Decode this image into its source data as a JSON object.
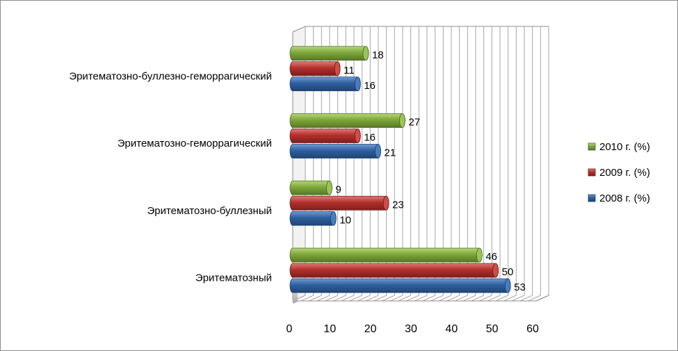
{
  "chart_data": {
    "type": "bar",
    "orientation": "horizontal",
    "style": "3d-cylinder",
    "categories": [
      "Эритематозный",
      "Эритематозно-буллезный",
      "Эритематозно-геморрагический",
      "Эритематозно-буллезно-геморрагический"
    ],
    "series": [
      {
        "name": "2008 г. (%)",
        "values": [
          53,
          10,
          21,
          16
        ],
        "color": "#2f5f9e"
      },
      {
        "name": "2009 г. (%)",
        "values": [
          50,
          23,
          16,
          11
        ],
        "color": "#b3302c"
      },
      {
        "name": "2010 г. (%)",
        "values": [
          46,
          9,
          27,
          18
        ],
        "color": "#7da73a"
      }
    ],
    "xlim": [
      0,
      60
    ],
    "xticks": [
      "0",
      "10",
      "20",
      "30",
      "40",
      "50",
      "60"
    ],
    "grid": true,
    "legend_position": "right",
    "legend_order": [
      "2010 г. (%)",
      "2009 г. (%)",
      "2008 г. (%)"
    ],
    "data_labels": true
  }
}
